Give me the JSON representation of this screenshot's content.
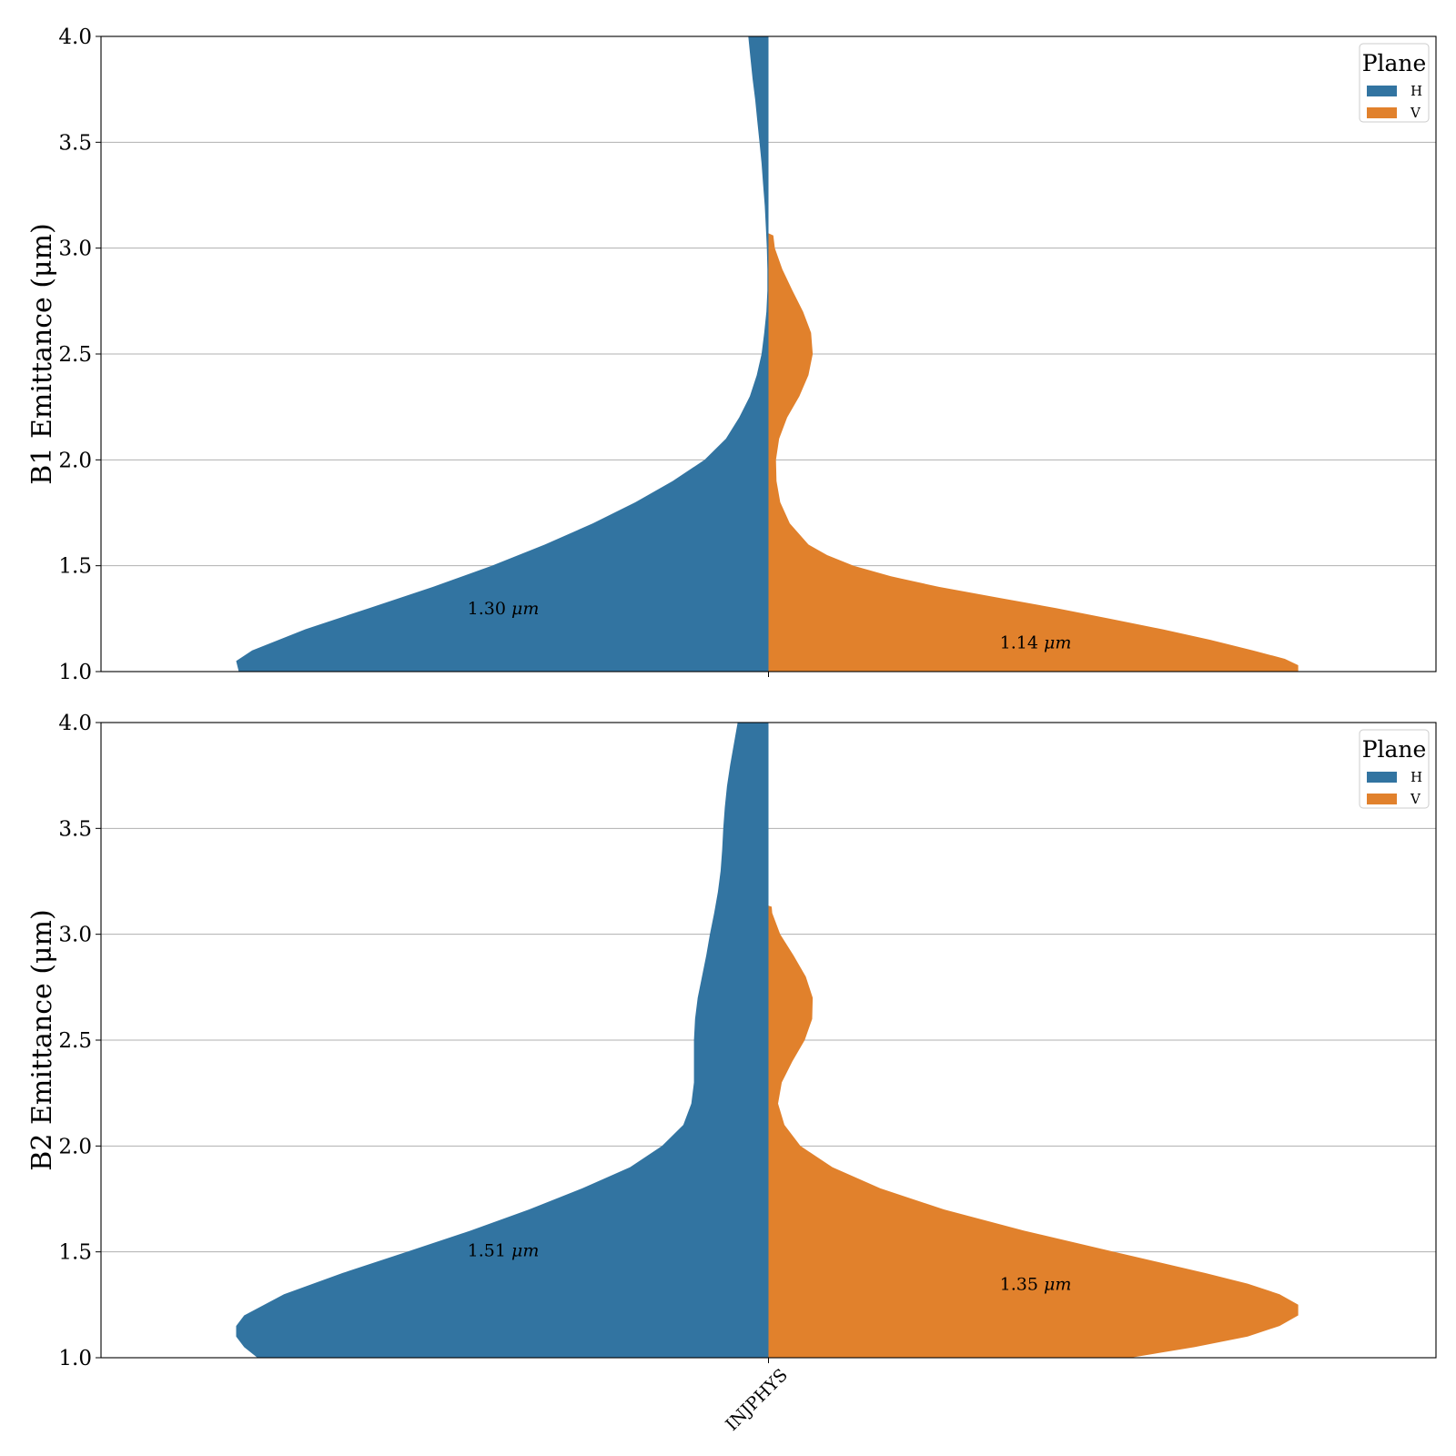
{
  "chart_data": [
    {
      "type": "violin",
      "split": true,
      "ylabel": "B1 Emittance (μm)",
      "ylim": [
        1.0,
        4.0
      ],
      "yticks": [
        "1.0",
        "1.5",
        "2.0",
        "2.5",
        "3.0",
        "3.5",
        "4.0"
      ],
      "grid": "y",
      "categories": [
        "INJPHYS"
      ],
      "legend": {
        "title": "Plane",
        "placement": "top-right",
        "entries": [
          {
            "label": "H",
            "color": "#3274a1"
          },
          {
            "label": "V",
            "color": "#e1812c"
          }
        ]
      },
      "series": [
        {
          "name": "H",
          "side": "left",
          "color": "#3274a1",
          "annotation": "1.30",
          "annotation_y": 1.3,
          "density": [
            [
              1.0,
              0.995
            ],
            [
              1.05,
              1.0
            ],
            [
              1.1,
              0.97
            ],
            [
              1.2,
              0.87
            ],
            [
              1.3,
              0.75
            ],
            [
              1.4,
              0.63
            ],
            [
              1.5,
              0.52
            ],
            [
              1.6,
              0.42
            ],
            [
              1.7,
              0.33
            ],
            [
              1.8,
              0.25
            ],
            [
              1.9,
              0.18
            ],
            [
              2.0,
              0.12
            ],
            [
              2.1,
              0.08
            ],
            [
              2.2,
              0.055
            ],
            [
              2.3,
              0.035
            ],
            [
              2.4,
              0.022
            ],
            [
              2.5,
              0.013
            ],
            [
              2.6,
              0.008
            ],
            [
              2.7,
              0.004
            ],
            [
              2.8,
              0.002
            ],
            [
              2.9,
              0.002
            ],
            [
              3.0,
              0.003
            ],
            [
              3.1,
              0.005
            ],
            [
              3.2,
              0.007
            ],
            [
              3.3,
              0.01
            ],
            [
              3.4,
              0.013
            ],
            [
              3.5,
              0.017
            ],
            [
              3.6,
              0.021
            ],
            [
              3.7,
              0.025
            ],
            [
              3.8,
              0.03
            ],
            [
              3.9,
              0.034
            ],
            [
              4.0,
              0.038
            ]
          ]
        },
        {
          "name": "V",
          "side": "right",
          "color": "#e1812c",
          "annotation": "1.14",
          "annotation_y": 1.14,
          "density": [
            [
              1.0,
              0.995
            ],
            [
              1.03,
              0.995
            ],
            [
              1.06,
              0.97
            ],
            [
              1.1,
              0.91
            ],
            [
              1.15,
              0.83
            ],
            [
              1.2,
              0.74
            ],
            [
              1.25,
              0.64
            ],
            [
              1.3,
              0.54
            ],
            [
              1.35,
              0.43
            ],
            [
              1.4,
              0.32
            ],
            [
              1.45,
              0.23
            ],
            [
              1.5,
              0.16
            ],
            [
              1.55,
              0.11
            ],
            [
              1.6,
              0.075
            ],
            [
              1.7,
              0.04
            ],
            [
              1.8,
              0.022
            ],
            [
              1.9,
              0.015
            ],
            [
              2.0,
              0.014
            ],
            [
              2.1,
              0.02
            ],
            [
              2.2,
              0.035
            ],
            [
              2.3,
              0.058
            ],
            [
              2.4,
              0.075
            ],
            [
              2.5,
              0.083
            ],
            [
              2.6,
              0.08
            ],
            [
              2.7,
              0.065
            ],
            [
              2.8,
              0.045
            ],
            [
              2.9,
              0.026
            ],
            [
              3.0,
              0.012
            ],
            [
              3.06,
              0.009
            ],
            [
              3.07,
              0.0
            ]
          ]
        }
      ]
    },
    {
      "type": "violin",
      "split": true,
      "ylabel": "B2 Emittance (μm)",
      "ylim": [
        1.0,
        4.0
      ],
      "yticks": [
        "1.0",
        "1.5",
        "2.0",
        "2.5",
        "3.0",
        "3.5",
        "4.0"
      ],
      "grid": "y",
      "categories": [
        "INJPHYS"
      ],
      "legend": {
        "title": "Plane",
        "placement": "top-right",
        "entries": [
          {
            "label": "H",
            "color": "#3274a1"
          },
          {
            "label": "V",
            "color": "#e1812c"
          }
        ]
      },
      "series": [
        {
          "name": "H",
          "side": "left",
          "color": "#3274a1",
          "annotation": "1.51",
          "annotation_y": 1.51,
          "density": [
            [
              1.0,
              0.96
            ],
            [
              1.05,
              0.985
            ],
            [
              1.1,
              1.0
            ],
            [
              1.15,
              1.0
            ],
            [
              1.2,
              0.985
            ],
            [
              1.3,
              0.91
            ],
            [
              1.4,
              0.8
            ],
            [
              1.5,
              0.68
            ],
            [
              1.6,
              0.56
            ],
            [
              1.7,
              0.45
            ],
            [
              1.8,
              0.35
            ],
            [
              1.9,
              0.26
            ],
            [
              2.0,
              0.2
            ],
            [
              2.1,
              0.16
            ],
            [
              2.2,
              0.145
            ],
            [
              2.3,
              0.14
            ],
            [
              2.4,
              0.14
            ],
            [
              2.5,
              0.14
            ],
            [
              2.6,
              0.138
            ],
            [
              2.7,
              0.133
            ],
            [
              2.8,
              0.125
            ],
            [
              2.9,
              0.117
            ],
            [
              3.0,
              0.11
            ],
            [
              3.1,
              0.102
            ],
            [
              3.2,
              0.095
            ],
            [
              3.3,
              0.09
            ],
            [
              3.4,
              0.087
            ],
            [
              3.5,
              0.085
            ],
            [
              3.6,
              0.082
            ],
            [
              3.7,
              0.078
            ],
            [
              3.8,
              0.072
            ],
            [
              3.9,
              0.065
            ],
            [
              4.0,
              0.058
            ]
          ]
        },
        {
          "name": "V",
          "side": "right",
          "color": "#e1812c",
          "annotation": "1.35",
          "annotation_y": 1.35,
          "density": [
            [
              1.0,
              0.68
            ],
            [
              1.05,
              0.8
            ],
            [
              1.1,
              0.9
            ],
            [
              1.15,
              0.96
            ],
            [
              1.2,
              0.995
            ],
            [
              1.25,
              0.995
            ],
            [
              1.3,
              0.96
            ],
            [
              1.35,
              0.9
            ],
            [
              1.4,
              0.82
            ],
            [
              1.5,
              0.65
            ],
            [
              1.6,
              0.48
            ],
            [
              1.7,
              0.33
            ],
            [
              1.8,
              0.21
            ],
            [
              1.9,
              0.12
            ],
            [
              2.0,
              0.06
            ],
            [
              2.1,
              0.03
            ],
            [
              2.2,
              0.018
            ],
            [
              2.3,
              0.025
            ],
            [
              2.4,
              0.045
            ],
            [
              2.5,
              0.068
            ],
            [
              2.6,
              0.082
            ],
            [
              2.7,
              0.083
            ],
            [
              2.8,
              0.07
            ],
            [
              2.9,
              0.047
            ],
            [
              3.0,
              0.022
            ],
            [
              3.1,
              0.007
            ],
            [
              3.13,
              0.006
            ],
            [
              3.135,
              0.0
            ]
          ]
        }
      ]
    }
  ],
  "annotation_unit": "μm",
  "xtick_label": "INJPHYS"
}
